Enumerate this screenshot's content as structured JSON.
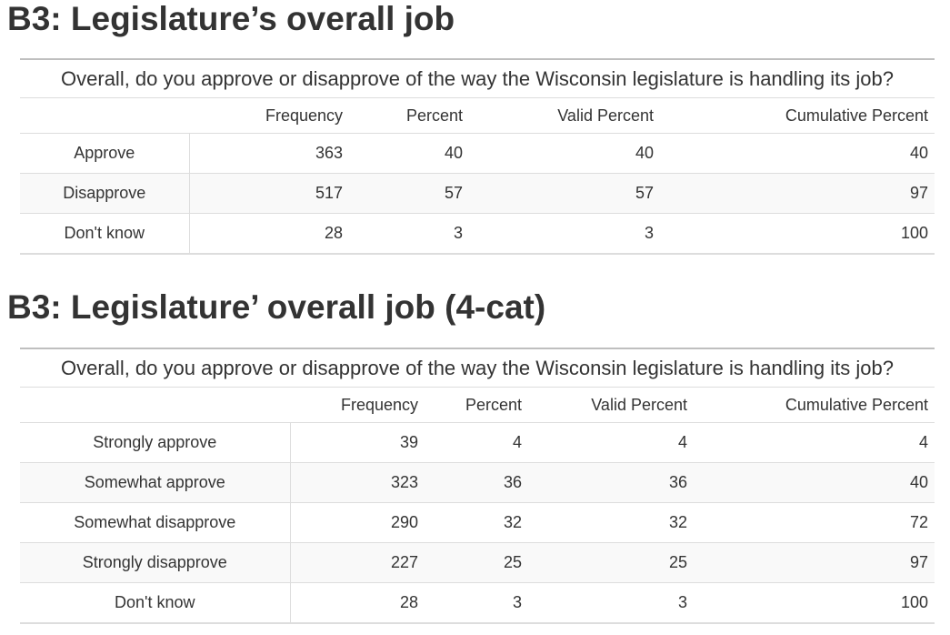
{
  "section1": {
    "title": "B3: Legislature’s overall job",
    "caption": "Overall, do you approve or disapprove of the way the Wisconsin legislature is handling its job?",
    "headers": [
      "Frequency",
      "Percent",
      "Valid Percent",
      "Cumulative Percent"
    ],
    "rows": [
      {
        "label": "Approve",
        "frequency": "363",
        "percent": "40",
        "valid_percent": "40",
        "cumulative_percent": "40"
      },
      {
        "label": "Disapprove",
        "frequency": "517",
        "percent": "57",
        "valid_percent": "57",
        "cumulative_percent": "97"
      },
      {
        "label": "Don't know",
        "frequency": "28",
        "percent": "3",
        "valid_percent": "3",
        "cumulative_percent": "100"
      }
    ]
  },
  "section2": {
    "title": "B3: Legislature’ overall job (4-cat)",
    "caption": "Overall, do you approve or disapprove of the way the Wisconsin legislature is handling its job?",
    "headers": [
      "Frequency",
      "Percent",
      "Valid Percent",
      "Cumulative Percent"
    ],
    "rows": [
      {
        "label": "Strongly approve",
        "frequency": "39",
        "percent": "4",
        "valid_percent": "4",
        "cumulative_percent": "4"
      },
      {
        "label": "Somewhat approve",
        "frequency": "323",
        "percent": "36",
        "valid_percent": "36",
        "cumulative_percent": "40"
      },
      {
        "label": "Somewhat disapprove",
        "frequency": "290",
        "percent": "32",
        "valid_percent": "32",
        "cumulative_percent": "72"
      },
      {
        "label": "Strongly disapprove",
        "frequency": "227",
        "percent": "25",
        "valid_percent": "25",
        "cumulative_percent": "97"
      },
      {
        "label": "Don't know",
        "frequency": "28",
        "percent": "3",
        "valid_percent": "3",
        "cumulative_percent": "100"
      }
    ]
  }
}
